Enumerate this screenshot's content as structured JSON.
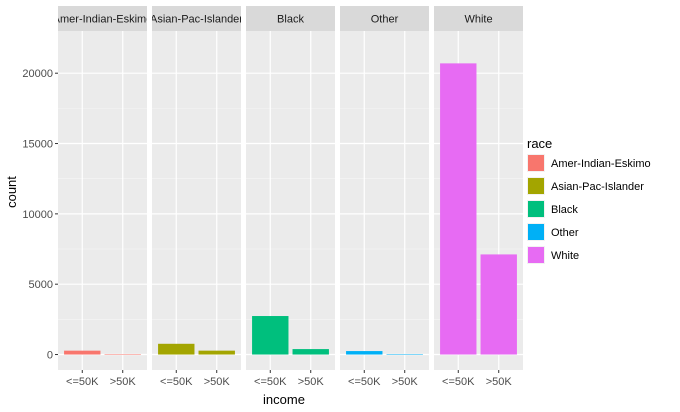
{
  "chart_data": {
    "type": "bar",
    "facet_by": "race",
    "facets": [
      {
        "name": "Amer-Indian-Eskimo",
        "strip_label": "Amer-Indian-Eskimo",
        "values": [
          275,
          36
        ],
        "color": "#F8766D"
      },
      {
        "name": "Asian-Pac-Islander",
        "strip_label": "Asian-Pac-Islander",
        "values": [
          763,
          276
        ],
        "color": "#A3A500"
      },
      {
        "name": "Black",
        "strip_label": "Black",
        "values": [
          2737,
          387
        ],
        "color": "#00BF7D"
      },
      {
        "name": "Other",
        "strip_label": "Other",
        "values": [
          246,
          25
        ],
        "color": "#00B0F6"
      },
      {
        "name": "White",
        "strip_label": "White",
        "values": [
          20699,
          7117
        ],
        "color": "#E76BF3"
      }
    ],
    "categories": [
      "<=50K",
      ">50K"
    ],
    "xlabel": "income",
    "ylabel": "count",
    "yticks": [
      "0",
      "5000",
      "10000",
      "15000",
      "20000"
    ],
    "ylim": [
      -1100,
      23000
    ],
    "grid": true,
    "legend": {
      "title": "race",
      "position": "right",
      "entries": [
        "Amer-Indian-Eskimo",
        "Asian-Pac-Islander",
        "Black",
        "Other",
        "White"
      ]
    }
  }
}
